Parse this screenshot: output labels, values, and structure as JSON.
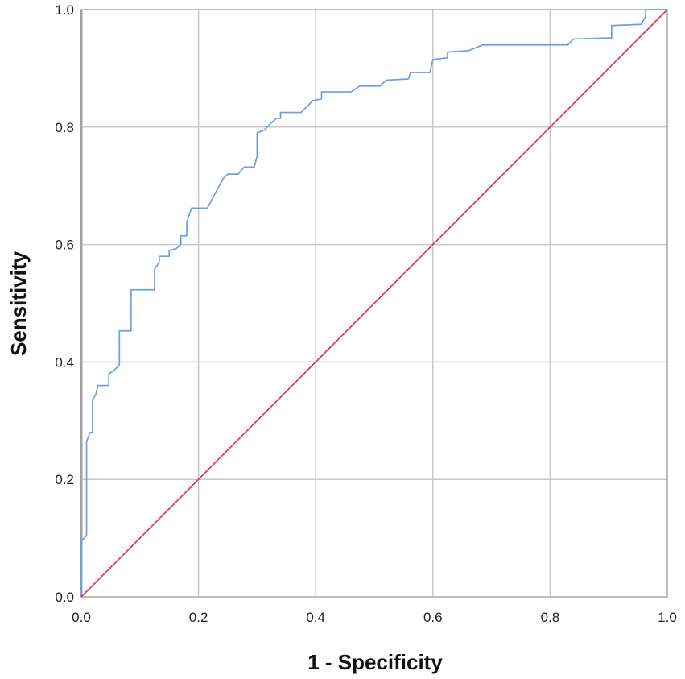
{
  "chart_data": {
    "type": "line",
    "title": "",
    "xlabel": "1 - Specificity",
    "ylabel": "Sensitivity",
    "xlim": [
      0,
      1
    ],
    "ylim": [
      0,
      1
    ],
    "xticks": [
      "0.0",
      "0.2",
      "0.4",
      "0.6",
      "0.8",
      "1.0"
    ],
    "yticks": [
      "0.0",
      "0.2",
      "0.4",
      "0.6",
      "0.8",
      "1.0"
    ],
    "grid": true,
    "legend": "none",
    "series": [
      {
        "color": "#6a9fe0",
        "points": [
          [
            0.0,
            0.0
          ],
          [
            0.0,
            0.095
          ],
          [
            0.005,
            0.1
          ],
          [
            0.009,
            0.105
          ],
          [
            0.009,
            0.265
          ],
          [
            0.015,
            0.28
          ],
          [
            0.019,
            0.28
          ],
          [
            0.019,
            0.335
          ],
          [
            0.025,
            0.345
          ],
          [
            0.028,
            0.36
          ],
          [
            0.047,
            0.36
          ],
          [
            0.047,
            0.38
          ],
          [
            0.055,
            0.385
          ],
          [
            0.065,
            0.395
          ],
          [
            0.065,
            0.453
          ],
          [
            0.085,
            0.453
          ],
          [
            0.085,
            0.523
          ],
          [
            0.125,
            0.523
          ],
          [
            0.125,
            0.558
          ],
          [
            0.133,
            0.57
          ],
          [
            0.133,
            0.58
          ],
          [
            0.15,
            0.58
          ],
          [
            0.15,
            0.59
          ],
          [
            0.162,
            0.593
          ],
          [
            0.17,
            0.6
          ],
          [
            0.17,
            0.615
          ],
          [
            0.18,
            0.615
          ],
          [
            0.18,
            0.638
          ],
          [
            0.188,
            0.662
          ],
          [
            0.215,
            0.662
          ],
          [
            0.23,
            0.69
          ],
          [
            0.242,
            0.712
          ],
          [
            0.25,
            0.72
          ],
          [
            0.268,
            0.72
          ],
          [
            0.27,
            0.723
          ],
          [
            0.278,
            0.732
          ],
          [
            0.295,
            0.732
          ],
          [
            0.3,
            0.75
          ],
          [
            0.3,
            0.79
          ],
          [
            0.312,
            0.795
          ],
          [
            0.325,
            0.808
          ],
          [
            0.333,
            0.815
          ],
          [
            0.34,
            0.815
          ],
          [
            0.34,
            0.825
          ],
          [
            0.375,
            0.825
          ],
          [
            0.395,
            0.845
          ],
          [
            0.41,
            0.848
          ],
          [
            0.41,
            0.86
          ],
          [
            0.46,
            0.86
          ],
          [
            0.475,
            0.87
          ],
          [
            0.51,
            0.87
          ],
          [
            0.52,
            0.88
          ],
          [
            0.558,
            0.882
          ],
          [
            0.562,
            0.893
          ],
          [
            0.595,
            0.893
          ],
          [
            0.6,
            0.915
          ],
          [
            0.625,
            0.918
          ],
          [
            0.625,
            0.928
          ],
          [
            0.66,
            0.93
          ],
          [
            0.685,
            0.94
          ],
          [
            0.83,
            0.94
          ],
          [
            0.84,
            0.95
          ],
          [
            0.905,
            0.952
          ],
          [
            0.905,
            0.973
          ],
          [
            0.955,
            0.975
          ],
          [
            0.963,
            0.988
          ],
          [
            0.963,
            1.0
          ],
          [
            1.0,
            1.0
          ]
        ]
      },
      {
        "color": "#d9395a",
        "points": [
          [
            0,
            0
          ],
          [
            1,
            1
          ]
        ]
      }
    ]
  }
}
